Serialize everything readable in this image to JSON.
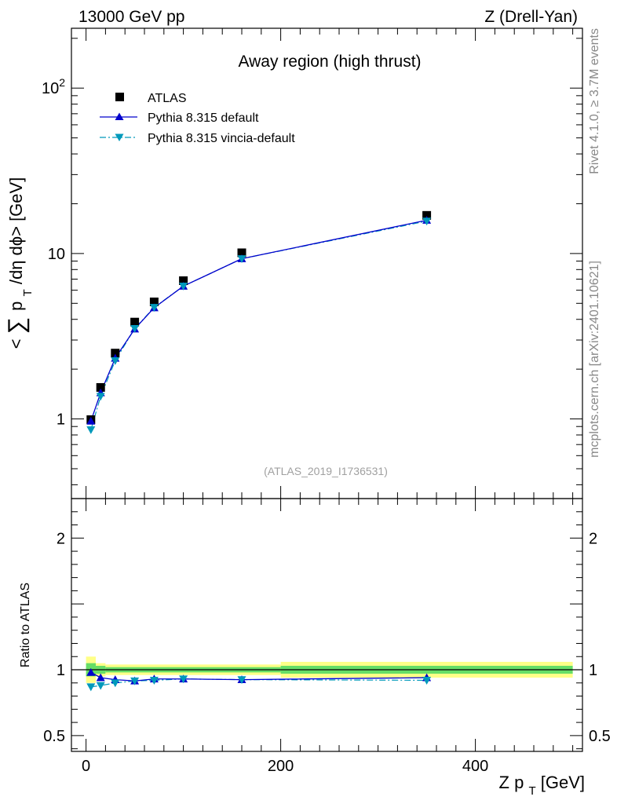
{
  "header": {
    "left": "13000 GeV pp",
    "right": "Z (Drell-Yan)"
  },
  "side_labels": {
    "rivet": "Rivet 4.1.0, ≥ 3.7M events",
    "mcplots": "mcplots.cern.ch [arXiv:2401.10621]"
  },
  "colors": {
    "atlas": "#000000",
    "default": "#0000cc",
    "vincia": "#0099bb",
    "band_inner": "#66dd66",
    "band_outer": "#ffff88"
  },
  "chart_data": [
    {
      "type": "line",
      "scale": "log",
      "title": "Away region (high thrust)",
      "ylabel": {
        "pre": "<",
        "sum": "∑",
        "p": "p",
        "sub": "T",
        "post": "/dη dϕ> [GeV]"
      },
      "watermark": "(ATLAS_2019_I1736531)",
      "xlim": [
        -15,
        510
      ],
      "ylim": [
        0.33,
        230
      ],
      "yticks": [
        {
          "value": 1,
          "label": "1"
        },
        {
          "value": 10,
          "label": "10"
        },
        {
          "value": 100,
          "label": "10",
          "sup": "2"
        }
      ],
      "x": [
        5,
        15,
        30,
        50,
        70,
        100,
        160,
        350
      ],
      "series": [
        {
          "name": "ATLAS",
          "marker": "square",
          "values": [
            0.99,
            1.55,
            2.5,
            3.85,
            5.1,
            6.85,
            10.1,
            17.0
          ]
        },
        {
          "name": "Pythia 8.315 default",
          "marker": "triangle-up",
          "values": [
            0.97,
            1.44,
            2.33,
            3.5,
            4.7,
            6.35,
            9.3,
            15.9
          ]
        },
        {
          "name": "Pythia 8.315 vincia-default",
          "marker": "triangle-down",
          "values": [
            0.86,
            1.37,
            2.25,
            3.52,
            4.72,
            6.35,
            9.3,
            15.7
          ]
        }
      ]
    },
    {
      "type": "line",
      "title": "",
      "ylabel": "Ratio to ATLAS",
      "xlabel": {
        "main": "Z p",
        "sub": "T",
        "unit": " [GeV]"
      },
      "xlim": [
        -15,
        510
      ],
      "ylim": [
        0.38,
        2.3
      ],
      "yticks": [
        {
          "value": 0.5,
          "label": "0.5"
        },
        {
          "value": 1,
          "label": "1"
        },
        {
          "value": 2,
          "label": "2"
        }
      ],
      "xticks": [
        {
          "value": 0,
          "label": "0"
        },
        {
          "value": 200,
          "label": "200"
        },
        {
          "value": 400,
          "label": "400"
        }
      ],
      "band_bins": [
        {
          "x0": 0,
          "x1": 10,
          "inner": 0.05,
          "outer": 0.1
        },
        {
          "x0": 10,
          "x1": 20,
          "inner": 0.03,
          "outer": 0.05
        },
        {
          "x0": 20,
          "x1": 200,
          "inner": 0.02,
          "outer": 0.04
        },
        {
          "x0": 200,
          "x1": 500,
          "inner": 0.03,
          "outer": 0.06
        }
      ],
      "x": [
        5,
        15,
        30,
        50,
        70,
        100,
        160,
        350
      ],
      "series": [
        {
          "name": "Pythia 8.315 default",
          "marker": "triangle-up",
          "values": [
            0.98,
            0.94,
            0.925,
            0.915,
            0.93,
            0.93,
            0.925,
            0.94
          ]
        },
        {
          "name": "Pythia 8.315 vincia-default",
          "marker": "triangle-down",
          "values": [
            0.87,
            0.88,
            0.9,
            0.915,
            0.92,
            0.93,
            0.925,
            0.92
          ]
        }
      ]
    }
  ]
}
